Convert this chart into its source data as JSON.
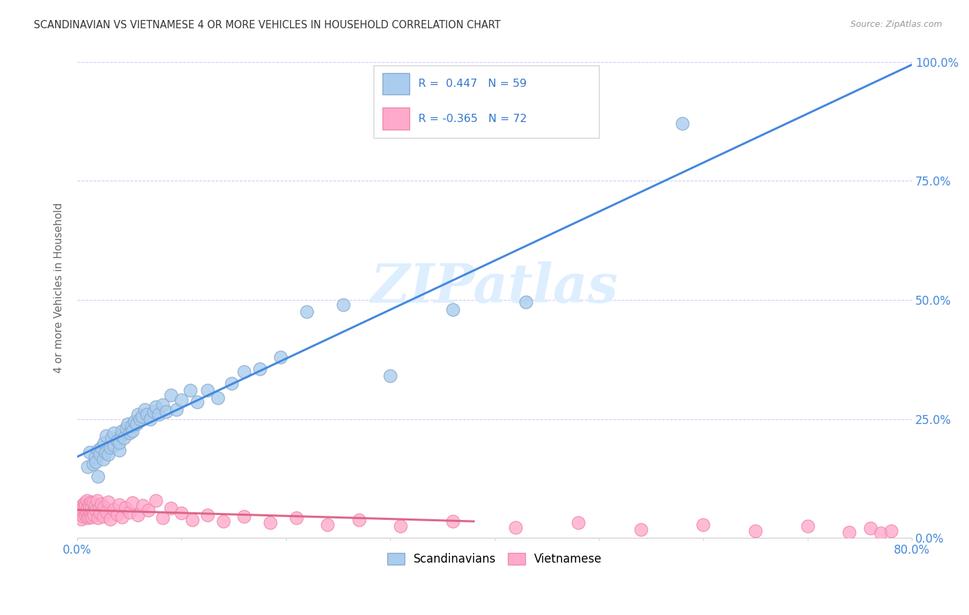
{
  "title": "SCANDINAVIAN VS VIETNAMESE 4 OR MORE VEHICLES IN HOUSEHOLD CORRELATION CHART",
  "source": "Source: ZipAtlas.com",
  "ylabel_label": "4 or more Vehicles in Household",
  "xlim": [
    0.0,
    0.8
  ],
  "ylim": [
    0.0,
    1.05
  ],
  "background_color": "#ffffff",
  "grid_color": "#ccccff",
  "scandinavian_color": "#aaccee",
  "scandinavian_edge": "#88aacc",
  "vietnamese_color": "#ffaacc",
  "vietnamese_edge": "#ee88aa",
  "blue_line_color": "#4488dd",
  "pink_line_color": "#dd6688",
  "watermark_color": "#ddeeff",
  "scand_x": [
    0.01,
    0.012,
    0.015,
    0.017,
    0.018,
    0.02,
    0.02,
    0.022,
    0.023,
    0.025,
    0.026,
    0.027,
    0.028,
    0.03,
    0.032,
    0.033,
    0.035,
    0.035,
    0.038,
    0.04,
    0.04,
    0.042,
    0.043,
    0.045,
    0.047,
    0.048,
    0.05,
    0.052,
    0.053,
    0.055,
    0.057,
    0.058,
    0.06,
    0.062,
    0.065,
    0.067,
    0.07,
    0.073,
    0.075,
    0.078,
    0.082,
    0.085,
    0.09,
    0.095,
    0.1,
    0.108,
    0.115,
    0.125,
    0.135,
    0.148,
    0.16,
    0.175,
    0.195,
    0.22,
    0.255,
    0.3,
    0.36,
    0.43,
    0.58
  ],
  "scand_y": [
    0.15,
    0.18,
    0.155,
    0.17,
    0.16,
    0.13,
    0.185,
    0.175,
    0.19,
    0.165,
    0.2,
    0.18,
    0.215,
    0.175,
    0.19,
    0.21,
    0.195,
    0.22,
    0.205,
    0.185,
    0.2,
    0.215,
    0.225,
    0.21,
    0.23,
    0.24,
    0.22,
    0.235,
    0.225,
    0.245,
    0.24,
    0.26,
    0.25,
    0.255,
    0.27,
    0.26,
    0.25,
    0.265,
    0.275,
    0.26,
    0.28,
    0.265,
    0.3,
    0.27,
    0.29,
    0.31,
    0.285,
    0.31,
    0.295,
    0.325,
    0.35,
    0.355,
    0.38,
    0.475,
    0.49,
    0.34,
    0.48,
    0.495,
    0.87
  ],
  "viet_x": [
    0.002,
    0.003,
    0.004,
    0.005,
    0.005,
    0.006,
    0.006,
    0.007,
    0.007,
    0.008,
    0.008,
    0.009,
    0.009,
    0.01,
    0.01,
    0.011,
    0.011,
    0.012,
    0.012,
    0.013,
    0.013,
    0.014,
    0.014,
    0.015,
    0.015,
    0.016,
    0.017,
    0.018,
    0.019,
    0.02,
    0.021,
    0.022,
    0.023,
    0.025,
    0.026,
    0.028,
    0.03,
    0.032,
    0.035,
    0.038,
    0.04,
    0.043,
    0.046,
    0.05,
    0.053,
    0.058,
    0.063,
    0.068,
    0.075,
    0.082,
    0.09,
    0.1,
    0.11,
    0.125,
    0.14,
    0.16,
    0.185,
    0.21,
    0.24,
    0.27,
    0.31,
    0.36,
    0.42,
    0.48,
    0.54,
    0.6,
    0.65,
    0.7,
    0.74,
    0.76,
    0.77,
    0.78
  ],
  "viet_y": [
    0.05,
    0.06,
    0.04,
    0.07,
    0.055,
    0.065,
    0.045,
    0.075,
    0.058,
    0.048,
    0.068,
    0.052,
    0.078,
    0.042,
    0.062,
    0.072,
    0.046,
    0.056,
    0.066,
    0.05,
    0.076,
    0.044,
    0.064,
    0.054,
    0.074,
    0.048,
    0.068,
    0.058,
    0.078,
    0.042,
    0.062,
    0.052,
    0.072,
    0.046,
    0.066,
    0.056,
    0.076,
    0.04,
    0.06,
    0.05,
    0.07,
    0.044,
    0.064,
    0.054,
    0.074,
    0.048,
    0.068,
    0.058,
    0.078,
    0.042,
    0.062,
    0.052,
    0.038,
    0.048,
    0.035,
    0.045,
    0.032,
    0.042,
    0.028,
    0.038,
    0.025,
    0.035,
    0.022,
    0.032,
    0.018,
    0.028,
    0.015,
    0.025,
    0.012,
    0.02,
    0.01,
    0.015
  ]
}
